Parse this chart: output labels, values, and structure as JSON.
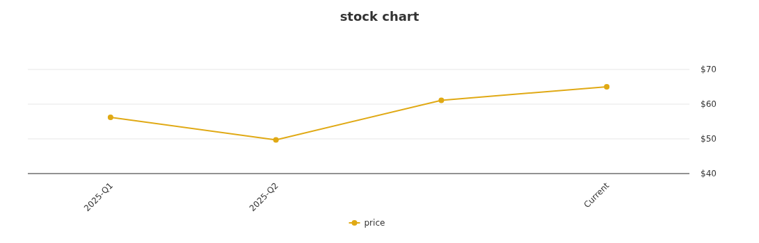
{
  "chart_data": {
    "type": "line",
    "title": "stock chart",
    "categories": [
      "2025-Q1",
      "2025-Q2",
      null,
      "Current"
    ],
    "series": [
      {
        "name": "price",
        "color": "#e0a914",
        "values": [
          56.2,
          49.7,
          61.1,
          65.0
        ]
      }
    ],
    "ylim": [
      40,
      70
    ],
    "yticks": [
      {
        "value": 40,
        "label": "$40"
      },
      {
        "value": 50,
        "label": "$50"
      },
      {
        "value": 60,
        "label": "$60"
      },
      {
        "value": 70,
        "label": "$70"
      }
    ],
    "grid": "y",
    "legend": "bottom",
    "marker": "circle",
    "line_style": "solid"
  }
}
